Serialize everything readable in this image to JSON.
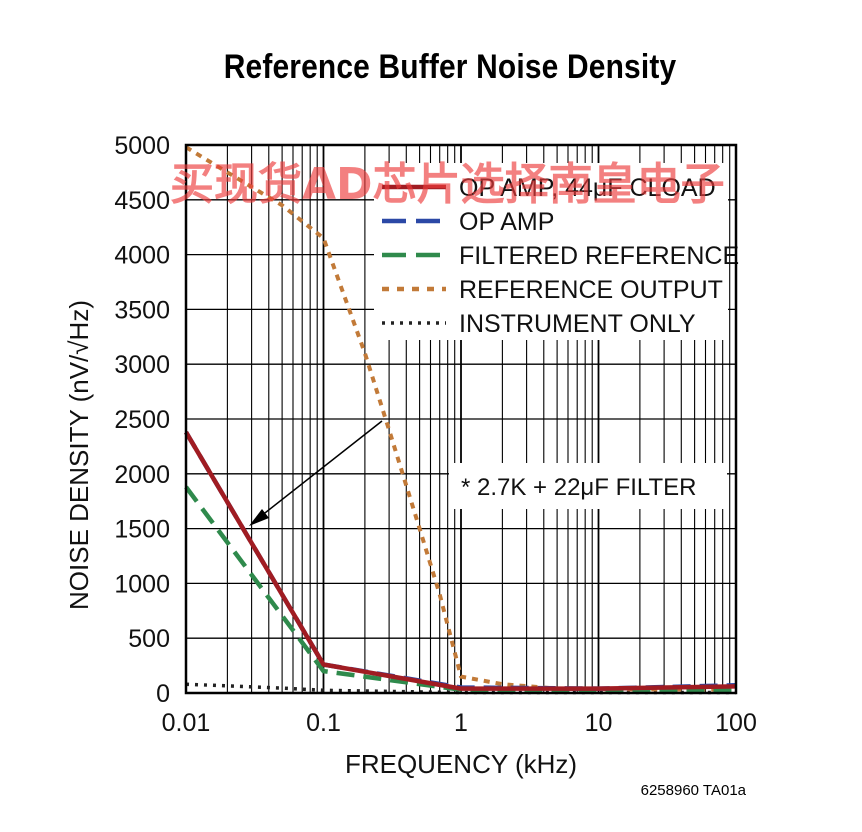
{
  "title": "Reference Buffer Noise Density",
  "watermark": "买现货AD芯片选择南皇电子",
  "part_code": "6258960 TA01a",
  "annotation": "* 2.7K + 22μF FILTER",
  "colors": {
    "op_amp_44uf": "#a01c22",
    "op_amp": "#2b48a6",
    "filtered_reference": "#2f8a4c",
    "reference_output": "#c27a38",
    "instrument_only": "#222222"
  },
  "chart_data": {
    "type": "line",
    "title": "Reference Buffer Noise Density",
    "xlabel": "FREQUENCY (kHz)",
    "ylabel": "NOISE DENSITY (nV/√Hz)",
    "xscale": "log",
    "xlim": [
      0.01,
      100
    ],
    "ylim": [
      0,
      5000
    ],
    "xticks": [
      "0.01",
      "0.1",
      "1",
      "10",
      "100"
    ],
    "yticks": [
      "0",
      "500",
      "1000",
      "1500",
      "2000",
      "2500",
      "3000",
      "3500",
      "4000",
      "4500",
      "5000"
    ],
    "grid": true,
    "legend_position": "top-right",
    "series": [
      {
        "name": "OP AMP, 44μF CLOAD",
        "style": "solid",
        "color": "#a01c22",
        "x": [
          0.01,
          0.1,
          1,
          3,
          10,
          100
        ],
        "y": [
          2380,
          260,
          40,
          40,
          40,
          60
        ]
      },
      {
        "name": "OP AMP",
        "style": "dashed",
        "color": "#2b48a6",
        "x": [
          0.01,
          0.1,
          1,
          10,
          100
        ],
        "y": [
          2380,
          260,
          50,
          40,
          70
        ]
      },
      {
        "name": "FILTERED REFERENCE",
        "style": "dashed",
        "color": "#2f8a4c",
        "x": [
          0.01,
          0.1,
          1,
          3,
          10,
          100
        ],
        "y": [
          1880,
          200,
          30,
          30,
          30,
          30
        ]
      },
      {
        "name": "REFERENCE OUTPUT",
        "style": "dotted",
        "color": "#c27a38",
        "x": [
          0.01,
          0.02,
          0.05,
          0.1,
          0.2,
          0.3,
          0.5,
          0.7,
          1,
          2,
          5,
          10,
          100
        ],
        "y": [
          4980,
          4750,
          4450,
          4150,
          3100,
          2400,
          1500,
          900,
          150,
          80,
          40,
          35,
          30
        ]
      },
      {
        "name": "INSTRUMENT ONLY",
        "style": "dotted",
        "color": "#222222",
        "x": [
          0.01,
          0.02,
          0.05,
          0.1,
          0.5,
          1,
          100
        ],
        "y": [
          80,
          65,
          45,
          25,
          10,
          5,
          5
        ]
      }
    ]
  }
}
